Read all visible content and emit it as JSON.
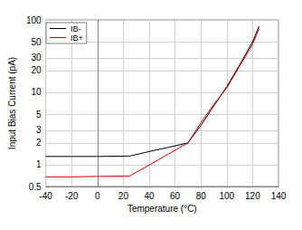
{
  "chart_data": {
    "type": "line",
    "x_label": "Temperature (°C)",
    "y_label": "Input Bias Current (pA)",
    "log": "y",
    "grid": true,
    "legend": "top-left",
    "xlim": [
      -40,
      140
    ],
    "xticks": [
      -40,
      -20,
      0,
      20,
      40,
      60,
      80,
      100,
      120,
      140
    ],
    "ylim": [
      0.5,
      100
    ],
    "yticks": [
      0.5,
      1,
      2,
      3,
      5,
      10,
      20,
      30,
      50,
      100
    ],
    "x": [
      -40,
      -20,
      0,
      25,
      40,
      55,
      70,
      80,
      90,
      100,
      110,
      120,
      125
    ],
    "series": [
      {
        "name": "IB-",
        "color": "#000000",
        "values": [
          1.3,
          1.3,
          1.3,
          1.32,
          1.52,
          1.74,
          2.0,
          3.5,
          6.5,
          12,
          24,
          50,
          82
        ]
      },
      {
        "name": "IB+",
        "color": "#cc0000",
        "values": [
          0.68,
          0.68,
          0.69,
          0.7,
          0.99,
          1.41,
          2.0,
          3.8,
          6.8,
          11.5,
          23,
          46,
          76
        ]
      }
    ]
  }
}
